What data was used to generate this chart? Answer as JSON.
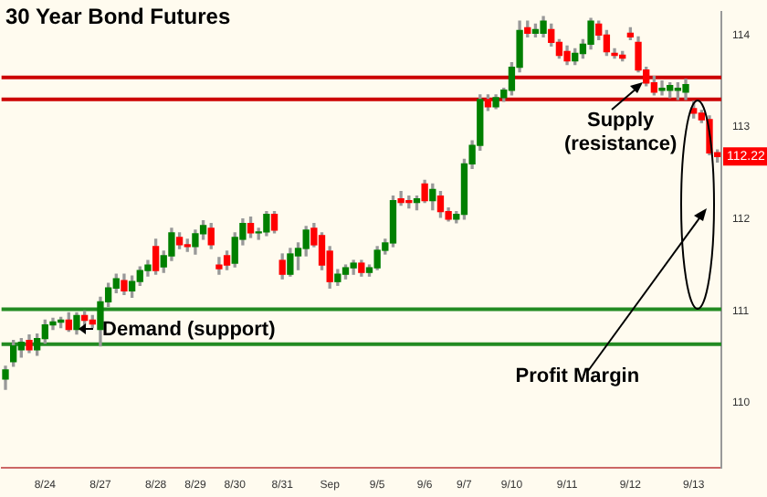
{
  "chart_data": {
    "type": "candlestick",
    "title": "30 Year Bond Futures",
    "categories": [
      null,
      null,
      null,
      null,
      null,
      "8/24",
      null,
      null,
      null,
      null,
      null,
      null,
      "8/27",
      null,
      null,
      null,
      null,
      null,
      null,
      "8/28",
      null,
      null,
      null,
      null,
      "8/29",
      null,
      null,
      null,
      null,
      "8/30",
      null,
      null,
      null,
      null,
      null,
      "8/31",
      null,
      null,
      null,
      null,
      null,
      "Sep",
      null,
      null,
      null,
      null,
      null,
      "9/5",
      null,
      null,
      null,
      null,
      null,
      "9/6",
      null,
      null,
      null,
      null,
      "9/7",
      null,
      null,
      null,
      null,
      null,
      "9/10",
      null,
      null,
      null,
      null,
      null,
      null,
      "9/11",
      null,
      null,
      null,
      null,
      null,
      null,
      null,
      "9/12",
      null,
      null,
      null,
      null,
      null,
      null,
      null,
      "9/13",
      null,
      null,
      null
    ],
    "ohlc": [
      [
        110.26,
        110.4,
        110.15,
        110.36
      ],
      [
        110.45,
        110.68,
        110.4,
        110.62
      ],
      [
        110.58,
        110.7,
        110.5,
        110.66
      ],
      [
        110.68,
        110.74,
        110.55,
        110.58
      ],
      [
        110.58,
        110.75,
        110.52,
        110.7
      ],
      [
        110.7,
        110.9,
        110.65,
        110.85
      ],
      [
        110.85,
        110.92,
        110.8,
        110.88
      ],
      [
        110.88,
        110.93,
        110.82,
        110.9
      ],
      [
        110.9,
        110.98,
        110.78,
        110.8
      ],
      [
        110.8,
        110.98,
        110.75,
        110.95
      ],
      [
        110.95,
        111.0,
        110.85,
        110.9
      ],
      [
        110.9,
        110.95,
        110.82,
        110.86
      ],
      [
        110.8,
        111.15,
        110.62,
        111.1
      ],
      [
        111.1,
        111.3,
        111.05,
        111.25
      ],
      [
        111.25,
        111.4,
        111.2,
        111.35
      ],
      [
        111.33,
        111.4,
        111.18,
        111.22
      ],
      [
        111.22,
        111.38,
        111.15,
        111.32
      ],
      [
        111.32,
        111.48,
        111.28,
        111.44
      ],
      [
        111.44,
        111.55,
        111.38,
        111.5
      ],
      [
        111.7,
        111.78,
        111.4,
        111.44
      ],
      [
        111.48,
        111.65,
        111.42,
        111.6
      ],
      [
        111.6,
        111.9,
        111.55,
        111.85
      ],
      [
        111.8,
        111.85,
        111.68,
        111.72
      ],
      [
        111.72,
        111.78,
        111.65,
        111.7
      ],
      [
        111.7,
        111.88,
        111.62,
        111.84
      ],
      [
        111.84,
        111.98,
        111.78,
        111.93
      ],
      [
        111.9,
        111.95,
        111.68,
        111.72
      ],
      [
        111.5,
        111.58,
        111.4,
        111.46
      ],
      [
        111.6,
        111.65,
        111.45,
        111.5
      ],
      [
        111.52,
        111.85,
        111.48,
        111.8
      ],
      [
        111.78,
        112.0,
        111.72,
        111.95
      ],
      [
        111.95,
        112.02,
        111.8,
        111.85
      ],
      [
        111.85,
        111.9,
        111.78,
        111.86
      ],
      [
        111.86,
        112.08,
        111.82,
        112.05
      ],
      [
        112.05,
        112.08,
        111.85,
        111.88
      ],
      [
        111.55,
        111.62,
        111.35,
        111.4
      ],
      [
        111.4,
        111.68,
        111.38,
        111.62
      ],
      [
        111.6,
        111.74,
        111.45,
        111.68
      ],
      [
        111.68,
        111.92,
        111.6,
        111.88
      ],
      [
        111.9,
        111.95,
        111.7,
        111.72
      ],
      [
        111.82,
        111.85,
        111.45,
        111.5
      ],
      [
        111.65,
        111.7,
        111.25,
        111.32
      ],
      [
        111.32,
        111.45,
        111.28,
        111.4
      ],
      [
        111.4,
        111.5,
        111.35,
        111.47
      ],
      [
        111.47,
        111.55,
        111.4,
        111.52
      ],
      [
        111.52,
        111.55,
        111.38,
        111.42
      ],
      [
        111.42,
        111.5,
        111.38,
        111.47
      ],
      [
        111.47,
        111.7,
        111.45,
        111.66
      ],
      [
        111.66,
        111.78,
        111.62,
        111.74
      ],
      [
        111.74,
        112.25,
        111.7,
        112.2
      ],
      [
        112.22,
        112.3,
        112.15,
        112.18
      ],
      [
        112.2,
        112.25,
        112.12,
        112.18
      ],
      [
        112.18,
        112.25,
        112.1,
        112.22
      ],
      [
        112.38,
        112.42,
        112.18,
        112.2
      ],
      [
        112.2,
        112.38,
        112.1,
        112.32
      ],
      [
        112.25,
        112.3,
        112.02,
        112.08
      ],
      [
        112.08,
        112.12,
        111.98,
        112.0
      ],
      [
        112.0,
        112.08,
        111.96,
        112.05
      ],
      [
        112.05,
        112.65,
        112.0,
        112.6
      ],
      [
        112.6,
        112.85,
        112.55,
        112.8
      ],
      [
        112.8,
        113.35,
        112.75,
        113.3
      ],
      [
        113.3,
        113.35,
        113.18,
        113.22
      ],
      [
        113.22,
        113.35,
        113.2,
        113.32
      ],
      [
        113.32,
        113.42,
        113.28,
        113.4
      ],
      [
        113.4,
        113.7,
        113.35,
        113.65
      ],
      [
        113.65,
        114.15,
        113.6,
        114.05
      ],
      [
        114.08,
        114.15,
        113.98,
        114.02
      ],
      [
        114.02,
        114.12,
        113.98,
        114.06
      ],
      [
        114.02,
        114.2,
        113.98,
        114.15
      ],
      [
        114.06,
        114.12,
        113.88,
        113.92
      ],
      [
        113.92,
        113.95,
        113.75,
        113.78
      ],
      [
        113.82,
        113.88,
        113.68,
        113.72
      ],
      [
        113.72,
        113.85,
        113.68,
        113.8
      ],
      [
        113.8,
        113.95,
        113.75,
        113.9
      ],
      [
        113.9,
        114.18,
        113.85,
        114.15
      ],
      [
        114.12,
        114.15,
        113.95,
        114.0
      ],
      [
        114.0,
        114.05,
        113.78,
        113.82
      ],
      [
        113.8,
        113.85,
        113.75,
        113.78
      ],
      [
        113.78,
        113.82,
        113.72,
        113.75
      ],
      [
        114.02,
        114.08,
        113.95,
        113.98
      ],
      [
        113.92,
        113.98,
        113.6,
        113.62
      ],
      [
        113.62,
        113.65,
        113.45,
        113.48
      ],
      [
        113.48,
        113.55,
        113.35,
        113.38
      ],
      [
        113.4,
        113.5,
        113.35,
        113.42
      ],
      [
        113.4,
        113.48,
        113.32,
        113.45
      ],
      [
        113.4,
        113.48,
        113.3,
        113.42
      ],
      [
        113.38,
        113.52,
        113.3,
        113.46
      ],
      [
        113.2,
        113.28,
        113.1,
        113.15
      ],
      [
        113.15,
        113.18,
        113.05,
        113.08
      ],
      [
        113.08,
        113.12,
        112.7,
        112.72
      ],
      [
        112.72,
        112.75,
        112.62,
        112.68
      ]
    ],
    "ylim": [
      109.3,
      114.25
    ],
    "yticks": [
      110,
      111,
      112,
      113,
      114
    ],
    "ref_lines": [
      {
        "axis": "y",
        "value": 111.02,
        "label": "Demand (support)",
        "color": "#228b22"
      },
      {
        "axis": "y",
        "value": 110.64,
        "color": "#228b22"
      },
      {
        "axis": "y",
        "value": 113.54,
        "color": "#cc0000"
      },
      {
        "axis": "y",
        "value": 113.3,
        "label": "Supply (resistance)",
        "color": "#cc0000"
      }
    ],
    "annotations": [
      "Profit Margin",
      "112.22"
    ]
  }
}
